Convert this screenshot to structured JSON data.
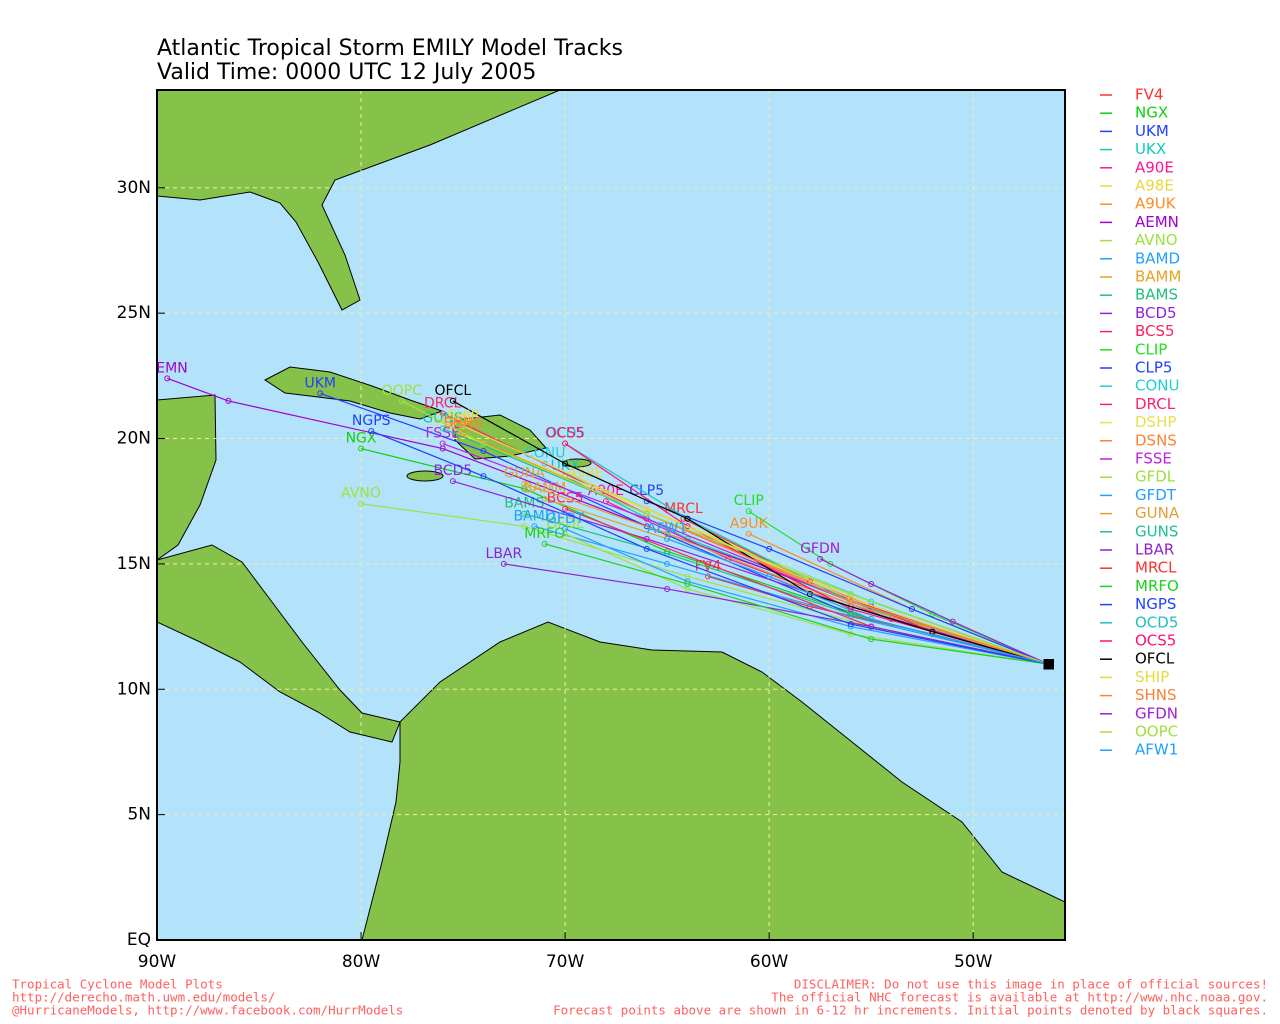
{
  "chart_data": {
    "type": "track-map",
    "title": "Atlantic Tropical Storm EMILY Model Tracks",
    "subtitle": "Valid Time: 0000 UTC 12 July 2005",
    "xlim": [
      -90,
      -45.5
    ],
    "ylim": [
      0,
      33.9
    ],
    "xticks": [
      {
        "value": -90,
        "label": "90W"
      },
      {
        "value": -80,
        "label": "80W"
      },
      {
        "value": -70,
        "label": "70W"
      },
      {
        "value": -60,
        "label": "60W"
      },
      {
        "value": -50,
        "label": "50W"
      }
    ],
    "yticks": [
      {
        "value": 0,
        "label": "EQ"
      },
      {
        "value": 5,
        "label": "5N"
      },
      {
        "value": 10,
        "label": "10N"
      },
      {
        "value": 15,
        "label": "15N"
      },
      {
        "value": 20,
        "label": "20N"
      },
      {
        "value": 25,
        "label": "25N"
      },
      {
        "value": 30,
        "label": "30N"
      }
    ],
    "grid": true,
    "series": [
      {
        "name": "FV4",
        "color": "#ff3030",
        "lon": [
          -46.3,
          -52,
          -58,
          -63
        ],
        "lat": [
          11,
          12.2,
          13.3,
          14.5
        ]
      },
      {
        "name": "NGX",
        "color": "#10d010",
        "lon": [
          -46.3,
          -55,
          -65,
          -72,
          -80
        ],
        "lat": [
          11,
          12.8,
          15.5,
          18,
          19.6
        ]
      },
      {
        "name": "UKM",
        "color": "#2040ff",
        "lon": [
          -46.3,
          -56,
          -66,
          -74,
          -82
        ],
        "lat": [
          11,
          13,
          16.5,
          19.5,
          21.8
        ]
      },
      {
        "name": "UKX",
        "color": "#10c8b8",
        "lon": [
          -46.3,
          -55,
          -64,
          -70
        ],
        "lat": [
          11,
          13.2,
          16,
          18.5
        ]
      },
      {
        "name": "A90E",
        "color": "#ff1493",
        "lon": [
          -46.3,
          -54,
          -62,
          -68
        ],
        "lat": [
          11,
          12.8,
          15.2,
          17.5
        ]
      },
      {
        "name": "A98E",
        "color": "#e8d840",
        "lon": [
          -46.3,
          -54,
          -62,
          -69
        ],
        "lat": [
          11,
          13,
          15.8,
          18.2
        ]
      },
      {
        "name": "A9UK",
        "color": "#ff8c20",
        "lon": [
          -46.3,
          -53,
          -61
        ],
        "lat": [
          11,
          13.2,
          16.2
        ]
      },
      {
        "name": "AEMN",
        "color": "#a000d0",
        "lon": [
          -46.3,
          -55,
          -65,
          -76,
          -86.5,
          -89.5
        ],
        "lat": [
          11,
          13.3,
          16.2,
          19.6,
          21.5,
          22.4
        ]
      },
      {
        "name": "AVNO",
        "color": "#a0e040",
        "lon": [
          -46.3,
          -55,
          -64,
          -72,
          -80
        ],
        "lat": [
          11,
          12.5,
          14.5,
          16.5,
          17.4
        ]
      },
      {
        "name": "BAMD",
        "color": "#20a0ff",
        "lon": [
          -46.3,
          -56,
          -65,
          -71.5
        ],
        "lat": [
          11,
          12.9,
          15,
          16.5
        ]
      },
      {
        "name": "BAMM",
        "color": "#e8a020",
        "lon": [
          -46.3,
          -56,
          -65,
          -71
        ],
        "lat": [
          11,
          13.3,
          16,
          17.6
        ]
      },
      {
        "name": "BAMS",
        "color": "#20c080",
        "lon": [
          -46.3,
          -56,
          -65,
          -72
        ],
        "lat": [
          11,
          13,
          15.4,
          17
        ]
      },
      {
        "name": "BCD5",
        "color": "#9020e0",
        "lon": [
          -46.3,
          -56,
          -66,
          -75.5
        ],
        "lat": [
          11,
          13.3,
          16,
          18.3
        ]
      },
      {
        "name": "BCS5",
        "color": "#ff2060",
        "lon": [
          -46.3,
          -55,
          -63,
          -70
        ],
        "lat": [
          11,
          12.5,
          15,
          17.2
        ]
      },
      {
        "name": "CLIP",
        "color": "#20e020",
        "lon": [
          -46.3,
          -52,
          -57,
          -61
        ],
        "lat": [
          11,
          13,
          15,
          17.1
        ]
      },
      {
        "name": "CLP5",
        "color": "#2040ff",
        "lon": [
          -46.3,
          -53,
          -60,
          -66
        ],
        "lat": [
          11,
          13.2,
          15.6,
          17.5
        ]
      },
      {
        "name": "CONU",
        "color": "#20d0d0",
        "lon": [
          -46.3,
          -55,
          -64,
          -71
        ],
        "lat": [
          11,
          13.5,
          16.5,
          19
        ]
      },
      {
        "name": "DRCL",
        "color": "#ff2070",
        "lon": [
          -46.3,
          -56,
          -66,
          -76
        ],
        "lat": [
          11,
          13.5,
          17,
          21
        ]
      },
      {
        "name": "DSHP",
        "color": "#e8e050",
        "lon": [
          -46.3,
          -56,
          -66,
          -75.5
        ],
        "lat": [
          11,
          13.8,
          17.2,
          20.3
        ]
      },
      {
        "name": "DSNS",
        "color": "#ff8030",
        "lon": [
          -46.3,
          -56,
          -66,
          -75
        ],
        "lat": [
          11,
          13.6,
          17,
          20.2
        ]
      },
      {
        "name": "FSSE",
        "color": "#c020e0",
        "lon": [
          -46.3,
          -56,
          -66,
          -76
        ],
        "lat": [
          11,
          13.5,
          16.8,
          19.8
        ]
      },
      {
        "name": "GFDL",
        "color": "#a0e040",
        "lon": [
          -46.3,
          -56,
          -64,
          -70
        ],
        "lat": [
          11,
          12.2,
          14,
          16.2
        ]
      },
      {
        "name": "GFDT",
        "color": "#20a0ff",
        "lon": [
          -46.3,
          -56,
          -64,
          -70
        ],
        "lat": [
          11,
          12.5,
          14.3,
          16.4
        ]
      },
      {
        "name": "GUNA",
        "color": "#e0a030",
        "lon": [
          -46.3,
          -56,
          -65,
          -72
        ],
        "lat": [
          11,
          13.4,
          16.2,
          18.2
        ]
      },
      {
        "name": "GUNS",
        "color": "#20c090",
        "lon": [
          -46.3,
          -56,
          -66,
          -76
        ],
        "lat": [
          11,
          13.8,
          17,
          20.4
        ]
      },
      {
        "name": "LBAR",
        "color": "#9020d0",
        "lon": [
          -46.3,
          -55,
          -65,
          -73
        ],
        "lat": [
          11,
          12.5,
          14,
          15
        ]
      },
      {
        "name": "MRCL",
        "color": "#ff3030",
        "lon": [
          -46.3,
          -52,
          -58,
          -64.2
        ],
        "lat": [
          11,
          12.3,
          14.3,
          16.8
        ]
      },
      {
        "name": "MRFO",
        "color": "#20d020",
        "lon": [
          -46.3,
          -55,
          -64,
          -71
        ],
        "lat": [
          11,
          12,
          14.2,
          15.8
        ]
      },
      {
        "name": "NGPS",
        "color": "#2040ff",
        "lon": [
          -46.3,
          -56,
          -66,
          -74,
          -79.5
        ],
        "lat": [
          11,
          12.6,
          15.6,
          18.5,
          20.3
        ]
      },
      {
        "name": "OCD5",
        "color": "#20c0c0",
        "lon": [
          -46.3,
          -56,
          -64,
          -70
        ],
        "lat": [
          11,
          13.5,
          16.8,
          19.8
        ]
      },
      {
        "name": "OCS5",
        "color": "#ff1070",
        "lon": [
          -46.3,
          -56,
          -64,
          -70
        ],
        "lat": [
          11,
          13.2,
          16.5,
          19.8
        ]
      },
      {
        "name": "OFCL",
        "color": "#000000",
        "lon": [
          -46.3,
          -52,
          -58,
          -64,
          -70,
          -75.5
        ],
        "lat": [
          11,
          12.3,
          13.8,
          16.8,
          19,
          21.5
        ]
      },
      {
        "name": "SHIP",
        "color": "#e8d840",
        "lon": [
          -46.3,
          -56,
          -66,
          -75
        ],
        "lat": [
          11,
          13.6,
          17.2,
          20.5
        ]
      },
      {
        "name": "SHNS",
        "color": "#ff8030",
        "lon": [
          -46.3,
          -56,
          -66,
          -75
        ],
        "lat": [
          11,
          13.5,
          17,
          20.2
        ]
      },
      {
        "name": "GFDN",
        "color": "#a020d0",
        "lon": [
          -46.3,
          -51,
          -55,
          -57.5
        ],
        "lat": [
          11,
          12.7,
          14.2,
          15.2
        ]
      },
      {
        "name": "OOPC",
        "color": "#a0e040",
        "lon": [
          -46.3,
          -56,
          -66,
          -74,
          -78
        ],
        "lat": [
          11,
          13.8,
          17,
          19.8,
          21.5
        ]
      },
      {
        "name": "AFW1",
        "color": "#20a0ff",
        "lon": [
          -46.3,
          -55,
          -60,
          -65
        ],
        "lat": [
          11,
          12.8,
          14.5,
          16
        ]
      }
    ],
    "footer_left": [
      "Tropical Cyclone Model Plots",
      "http://derecho.math.uwm.edu/models/",
      "@HurricaneModels, http://www.facebook.com/HurrModels"
    ],
    "footer_right": [
      "DISCLAIMER: Do not use this image in place of official sources!",
      "The official NHC forecast is available at http://www.nhc.noaa.gov.",
      "Forecast points above are shown in 6-12 hr increments. Initial points denoted by black squares."
    ]
  }
}
